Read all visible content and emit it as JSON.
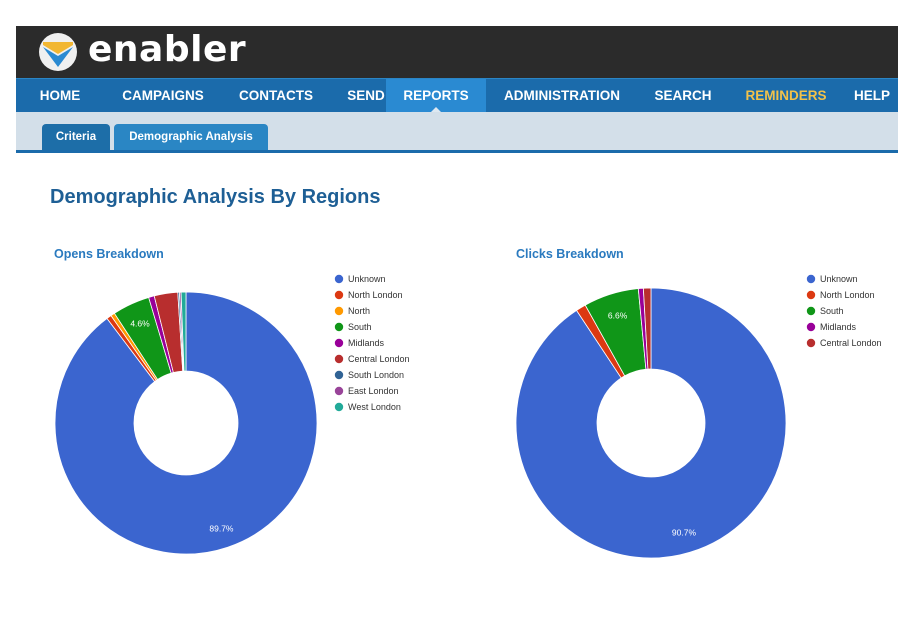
{
  "app": {
    "logo_text": "enabler"
  },
  "nav": {
    "items": [
      {
        "label": "HOME"
      },
      {
        "label": "CAMPAIGNS"
      },
      {
        "label": "CONTACTS"
      },
      {
        "label": "SEND"
      },
      {
        "label": "REPORTS",
        "active": true
      },
      {
        "label": "ADMINISTRATION"
      },
      {
        "label": "SEARCH"
      },
      {
        "label": "REMINDERS",
        "highlight": true
      },
      {
        "label": "HELP"
      }
    ]
  },
  "subnav": {
    "tabs": [
      {
        "label": "Criteria"
      },
      {
        "label": "Demographic Analysis",
        "active": true
      }
    ]
  },
  "page": {
    "title": "Demographic Analysis By Regions"
  },
  "colors": {
    "brand_dark": "#2b2b2b",
    "nav_blue": "#1b6bab",
    "nav_active": "#2a8ad2",
    "reminders": "#f2c24a",
    "title_blue": "#1e5f95"
  },
  "chart_data": [
    {
      "type": "pie",
      "title": "Opens Breakdown",
      "donut": true,
      "legend_position": "right",
      "series": [
        {
          "name": "Unknown",
          "value": 89.7,
          "color": "#3b65cf"
        },
        {
          "name": "North London",
          "value": 0.6,
          "color": "#dc3912"
        },
        {
          "name": "North",
          "value": 0.5,
          "color": "#ff9900"
        },
        {
          "name": "South",
          "value": 4.6,
          "color": "#109618"
        },
        {
          "name": "Midlands",
          "value": 0.7,
          "color": "#990099"
        },
        {
          "name": "Central London",
          "value": 2.9,
          "color": "#b82e2e"
        },
        {
          "name": "South London",
          "value": 0.2,
          "color": "#316395"
        },
        {
          "name": "East London",
          "value": 0.2,
          "color": "#994499"
        },
        {
          "name": "West London",
          "value": 0.6,
          "color": "#22aa99"
        }
      ],
      "slice_labels": [
        "89.7%",
        "4.6%"
      ]
    },
    {
      "type": "pie",
      "title": "Clicks Breakdown",
      "donut": true,
      "legend_position": "right",
      "series": [
        {
          "name": "Unknown",
          "value": 90.7,
          "color": "#3b65cf"
        },
        {
          "name": "North London",
          "value": 1.2,
          "color": "#dc3912"
        },
        {
          "name": "South",
          "value": 6.6,
          "color": "#109618"
        },
        {
          "name": "Midlands",
          "value": 0.6,
          "color": "#990099"
        },
        {
          "name": "Central London",
          "value": 0.9,
          "color": "#b82e2e"
        }
      ],
      "slice_labels": [
        "90.7%",
        "6.6%"
      ]
    }
  ]
}
